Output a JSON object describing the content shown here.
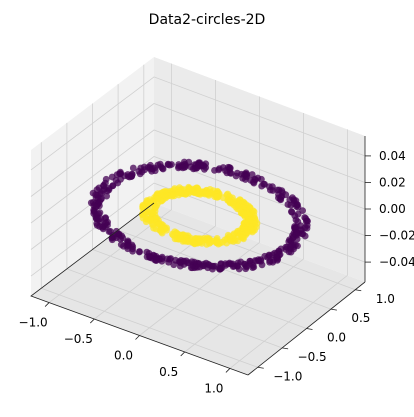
{
  "chart_data": {
    "type": "scatter",
    "title": "Data2-circles-2D",
    "xlabel": "",
    "ylabel": "",
    "zlabel": "",
    "xlim": [
      -1.2,
      1.2
    ],
    "ylim": [
      -1.2,
      1.2
    ],
    "zlim": [
      -0.055,
      0.055
    ],
    "x_ticks": [
      "−1.0",
      "−0.5",
      "0.0",
      "0.5",
      "1.0"
    ],
    "y_ticks": [
      "−1.0",
      "−0.5",
      "0.0",
      "0.5",
      "1.0"
    ],
    "z_ticks": [
      "−0.04",
      "−0.02",
      "0.00",
      "0.02",
      "0.04"
    ],
    "grid": true,
    "series": [
      {
        "class": 0,
        "color": "#440154",
        "shape": "ring",
        "radius": 1.0,
        "z": 0,
        "n": 400
      },
      {
        "class": 1,
        "color": "#fde725",
        "shape": "ring",
        "radius": 0.5,
        "z": 0,
        "n": 400
      }
    ]
  }
}
